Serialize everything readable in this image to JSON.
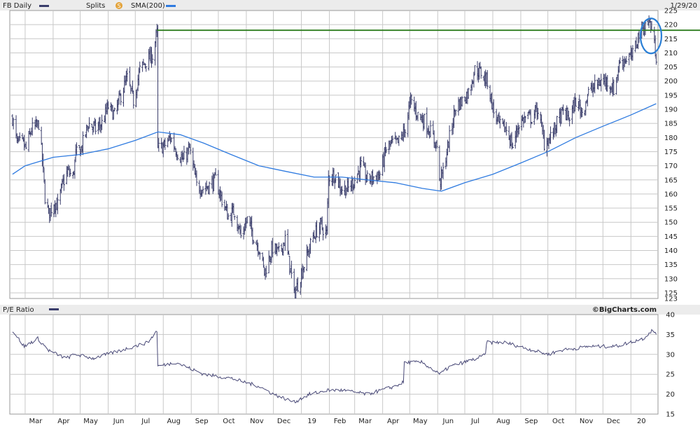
{
  "header": {
    "ticker_label": "FB Daily",
    "splits_label": "Splits",
    "splits_icon": "S",
    "sma_label": "SMA(200)",
    "date_label": "1/29/20"
  },
  "pe_panel": {
    "label": "P/E Ratio",
    "brand": "©BigCharts.com"
  },
  "colors": {
    "price_bar": "#3a3d6b",
    "sma": "#2f7be0",
    "resistance": "#2e7d1e",
    "pe_line": "#4a4a78",
    "annotation_circle": "#2a7fd6",
    "grid": "#c8c8c8"
  },
  "chart_data": [
    {
      "type": "ohlc",
      "title": "FB Daily",
      "ylim": [
        123,
        225
      ],
      "y_ticks": [
        "123",
        "125",
        "130",
        "135",
        "140",
        "145",
        "150",
        "155",
        "160",
        "165",
        "170",
        "175",
        "180",
        "185",
        "190",
        "195",
        "200",
        "205",
        "210",
        "215",
        "220",
        "225"
      ],
      "x_ticks": [
        "Mar",
        "Apr",
        "May",
        "Jun",
        "Jul",
        "Aug",
        "Sep",
        "Oct",
        "Nov",
        "Dec",
        "19",
        "Feb",
        "Mar",
        "Apr",
        "May",
        "Jun",
        "Jul",
        "Aug",
        "Sep",
        "Oct",
        "Nov",
        "Dec",
        "20"
      ],
      "grid": true,
      "series": [
        {
          "name": "FB Daily",
          "style": "ohlc",
          "x": [
            "2018-02-15",
            "2018-02-20",
            "2018-02-26",
            "2018-03-02",
            "2018-03-08",
            "2018-03-14",
            "2018-03-16",
            "2018-03-20",
            "2018-03-23",
            "2018-03-27",
            "2018-04-02",
            "2018-04-06",
            "2018-04-12",
            "2018-04-17",
            "2018-04-23",
            "2018-04-26",
            "2018-05-02",
            "2018-05-10",
            "2018-05-18",
            "2018-05-25",
            "2018-06-01",
            "2018-06-08",
            "2018-06-15",
            "2018-06-22",
            "2018-06-29",
            "2018-07-06",
            "2018-07-13",
            "2018-07-20",
            "2018-07-25",
            "2018-07-26",
            "2018-08-02",
            "2018-08-09",
            "2018-08-16",
            "2018-08-23",
            "2018-08-30",
            "2018-09-07",
            "2018-09-14",
            "2018-09-21",
            "2018-09-28",
            "2018-10-05",
            "2018-10-12",
            "2018-10-19",
            "2018-10-26",
            "2018-11-02",
            "2018-11-09",
            "2018-11-16",
            "2018-11-21",
            "2018-11-30",
            "2018-12-07",
            "2018-12-14",
            "2018-12-21",
            "2018-12-24",
            "2018-12-31",
            "2019-01-07",
            "2019-01-14",
            "2019-01-22",
            "2019-01-29",
            "2019-01-31",
            "2019-02-07",
            "2019-02-14",
            "2019-02-22",
            "2019-03-01",
            "2019-03-08",
            "2019-03-15",
            "2019-03-22",
            "2019-03-29",
            "2019-04-05",
            "2019-04-12",
            "2019-04-18",
            "2019-04-25",
            "2019-05-02",
            "2019-05-10",
            "2019-05-17",
            "2019-05-24",
            "2019-05-31",
            "2019-06-03",
            "2019-06-07",
            "2019-06-14",
            "2019-06-21",
            "2019-06-28",
            "2019-07-05",
            "2019-07-12",
            "2019-07-19",
            "2019-07-26",
            "2019-08-02",
            "2019-08-09",
            "2019-08-16",
            "2019-08-23",
            "2019-08-30",
            "2019-09-06",
            "2019-09-13",
            "2019-09-20",
            "2019-09-27",
            "2019-10-04",
            "2019-10-11",
            "2019-10-18",
            "2019-10-25",
            "2019-11-01",
            "2019-11-08",
            "2019-11-15",
            "2019-11-22",
            "2019-11-29",
            "2019-12-06",
            "2019-12-13",
            "2019-12-20",
            "2019-12-27",
            "2020-01-03",
            "2020-01-10",
            "2020-01-17",
            "2020-01-22",
            "2020-01-24",
            "2020-01-29"
          ],
          "close": [
            187,
            178,
            178,
            176,
            183,
            184,
            185,
            172,
            159,
            153,
            157,
            156,
            164,
            168,
            166,
            174,
            176,
            185,
            183,
            185,
            191,
            188,
            195,
            201,
            193,
            204,
            207,
            209,
            217,
            176,
            177,
            180,
            175,
            172,
            176,
            163,
            162,
            163,
            165,
            158,
            152,
            154,
            145,
            151,
            145,
            140,
            132,
            141,
            139,
            144,
            131,
            124,
            131,
            138,
            145,
            149,
            146,
            166,
            167,
            162,
            162,
            165,
            170,
            165,
            166,
            167,
            176,
            178,
            178,
            182,
            193,
            188,
            186,
            182,
            177,
            164,
            168,
            180,
            191,
            193,
            196,
            204,
            203,
            200,
            189,
            184,
            183,
            177,
            185,
            187,
            187,
            190,
            178,
            180,
            185,
            189,
            187,
            193,
            189,
            196,
            198,
            200,
            200,
            197,
            207,
            208,
            209,
            217,
            220,
            221,
            218,
            209
          ]
        },
        {
          "name": "SMA(200)",
          "style": "line",
          "x": [
            "2018-02-15",
            "2018-03-01",
            "2018-04-01",
            "2018-05-01",
            "2018-06-01",
            "2018-07-01",
            "2018-07-26",
            "2018-08-20",
            "2018-09-15",
            "2018-10-15",
            "2018-11-15",
            "2018-12-15",
            "2019-01-15",
            "2019-02-15",
            "2019-03-15",
            "2019-04-15",
            "2019-05-15",
            "2019-06-05",
            "2019-07-01",
            "2019-08-01",
            "2019-09-01",
            "2019-10-01",
            "2019-11-01",
            "2019-12-01",
            "2020-01-01",
            "2020-01-29"
          ],
          "values": [
            167,
            170,
            173,
            174,
            176,
            179,
            182,
            181,
            178,
            174,
            170,
            168,
            166,
            166,
            165,
            164,
            162,
            161,
            164,
            167,
            171,
            175,
            180,
            184,
            188,
            192
          ]
        },
        {
          "name": "Resistance",
          "style": "hline",
          "x": [
            "2018-07-25",
            "2020-01-29"
          ],
          "values": [
            218,
            218
          ]
        }
      ],
      "annotations": [
        {
          "type": "ellipse",
          "x": "2020-01-24",
          "y": 216,
          "color": "#2a7fd6"
        }
      ]
    },
    {
      "type": "line",
      "title": "P/E Ratio",
      "ylim": [
        15,
        40
      ],
      "y_ticks": [
        "15",
        "20",
        "25",
        "30",
        "35",
        "40"
      ],
      "grid": true,
      "series": [
        {
          "name": "P/E Ratio",
          "x": [
            "2018-02-15",
            "2018-02-28",
            "2018-03-15",
            "2018-03-27",
            "2018-04-15",
            "2018-04-26",
            "2018-05-15",
            "2018-06-15",
            "2018-07-15",
            "2018-07-25",
            "2018-07-26",
            "2018-08-15",
            "2018-09-15",
            "2018-10-15",
            "2018-11-15",
            "2018-12-01",
            "2018-12-24",
            "2019-01-10",
            "2019-01-30",
            "2019-02-15",
            "2019-03-15",
            "2019-04-15",
            "2019-04-24",
            "2019-04-25",
            "2019-05-15",
            "2019-06-03",
            "2019-06-15",
            "2019-07-15",
            "2019-07-24",
            "2019-07-25",
            "2019-08-15",
            "2019-09-15",
            "2019-10-01",
            "2019-10-15",
            "2019-11-15",
            "2019-12-15",
            "2020-01-15",
            "2020-01-24",
            "2020-01-29"
          ],
          "values": [
            36,
            32,
            34,
            31,
            29,
            30,
            29,
            31,
            33,
            36,
            27,
            28,
            25,
            24,
            22,
            20,
            18,
            20,
            21,
            21,
            20,
            22,
            23,
            28,
            28,
            25,
            27,
            29,
            30,
            33,
            33,
            31,
            30,
            31,
            32,
            32,
            34,
            36,
            35
          ]
        }
      ]
    }
  ]
}
